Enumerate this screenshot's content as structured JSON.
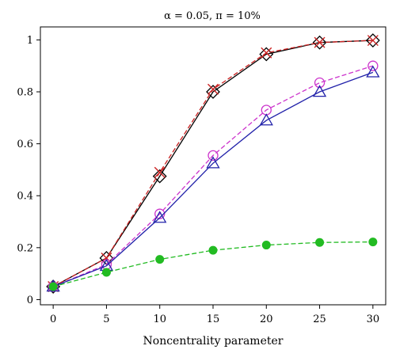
{
  "chart_data": {
    "type": "line",
    "title": "α = 0.05, π = 10%",
    "xlabel": "Noncentrality parameter",
    "ylabel": "",
    "x": [
      0,
      5,
      10,
      15,
      20,
      25,
      30
    ],
    "xlim": [
      -1.2,
      31.2
    ],
    "ylim": [
      -0.02,
      1.05
    ],
    "xticks": [
      "0",
      "5",
      "10",
      "15",
      "20",
      "25",
      "30"
    ],
    "yticks": [
      "0",
      "0.2",
      "0.4",
      "0.6",
      "0.8",
      "1"
    ],
    "grid": false,
    "series": [
      {
        "color": "#000000",
        "dash": "solid",
        "marker": "diamond",
        "values": [
          0.05,
          0.16,
          0.475,
          0.8,
          0.945,
          0.99,
          0.998
        ]
      },
      {
        "color": "#cc2222",
        "dash": "dashed",
        "marker": "x",
        "values": [
          0.05,
          0.16,
          0.49,
          0.81,
          0.95,
          0.99,
          0.998
        ]
      },
      {
        "color": "#cc33cc",
        "dash": "dashed",
        "marker": "circle",
        "values": [
          0.05,
          0.135,
          0.33,
          0.555,
          0.73,
          0.835,
          0.9
        ]
      },
      {
        "color": "#2222aa",
        "dash": "solid",
        "marker": "triangle",
        "values": [
          0.05,
          0.13,
          0.315,
          0.525,
          0.69,
          0.8,
          0.875
        ]
      },
      {
        "color": "#22bb22",
        "dash": "dashed",
        "marker": "filled-circle",
        "values": [
          0.05,
          0.105,
          0.155,
          0.19,
          0.21,
          0.22,
          0.222
        ]
      }
    ]
  }
}
